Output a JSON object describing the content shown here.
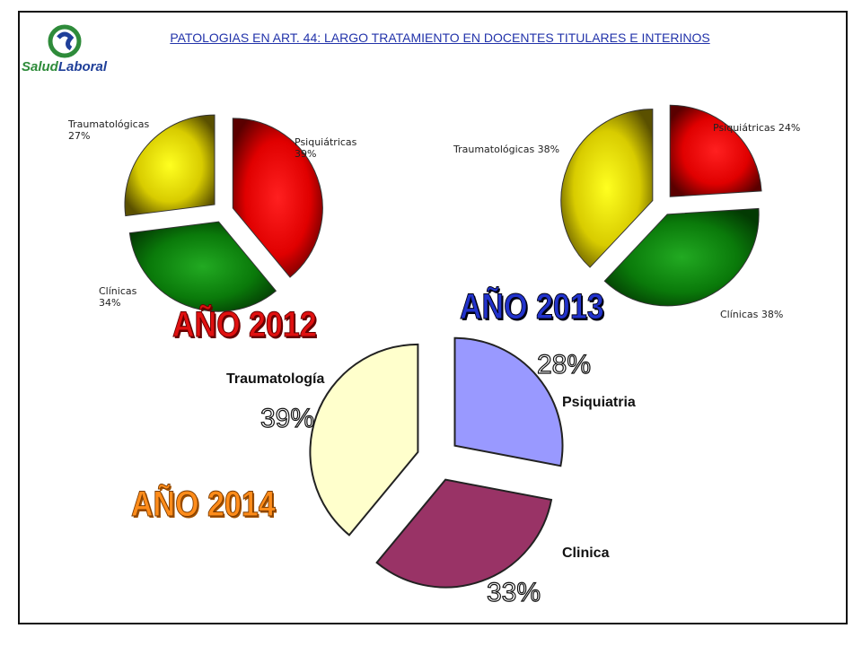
{
  "title": "PATOLOGIAS EN ART. 44: LARGO TRATAMIENTO EN DOCENTES TITULARES E INTERINOS",
  "logo": {
    "part1": "Salud",
    "part2": "Laboral"
  },
  "chart_data": [
    {
      "type": "pie",
      "title": "AÑO 2012",
      "categories": [
        "Psiquiátricas",
        "Clínicas",
        "Traumatológicas"
      ],
      "values": [
        39,
        34,
        27
      ],
      "labels": [
        "Psiquiátricas 39%",
        "Clínicas 34%",
        "Traumatológicas 27%"
      ],
      "colors": [
        "#e01010",
        "#1a8a1a",
        "#d4c200"
      ]
    },
    {
      "type": "pie",
      "title": "AÑO 2013",
      "categories": [
        "Psiquiátricas",
        "Clínicas",
        "Traumatológicas"
      ],
      "values": [
        24,
        38,
        38
      ],
      "labels": [
        "Psiquiátricas 24%",
        "Clínicas 38%",
        "Traumatológicas 38%"
      ],
      "colors": [
        "#e01010",
        "#1a8a1a",
        "#d4c200"
      ]
    },
    {
      "type": "pie",
      "title": "AÑO 2014",
      "categories": [
        "Psiquiatria",
        "Clinica",
        "Traumatología"
      ],
      "values": [
        28,
        33,
        39
      ],
      "labels": [
        "28%",
        "33%",
        "39%"
      ],
      "colors": [
        "#9999ff",
        "#993366",
        "#ffffcc"
      ]
    }
  ]
}
